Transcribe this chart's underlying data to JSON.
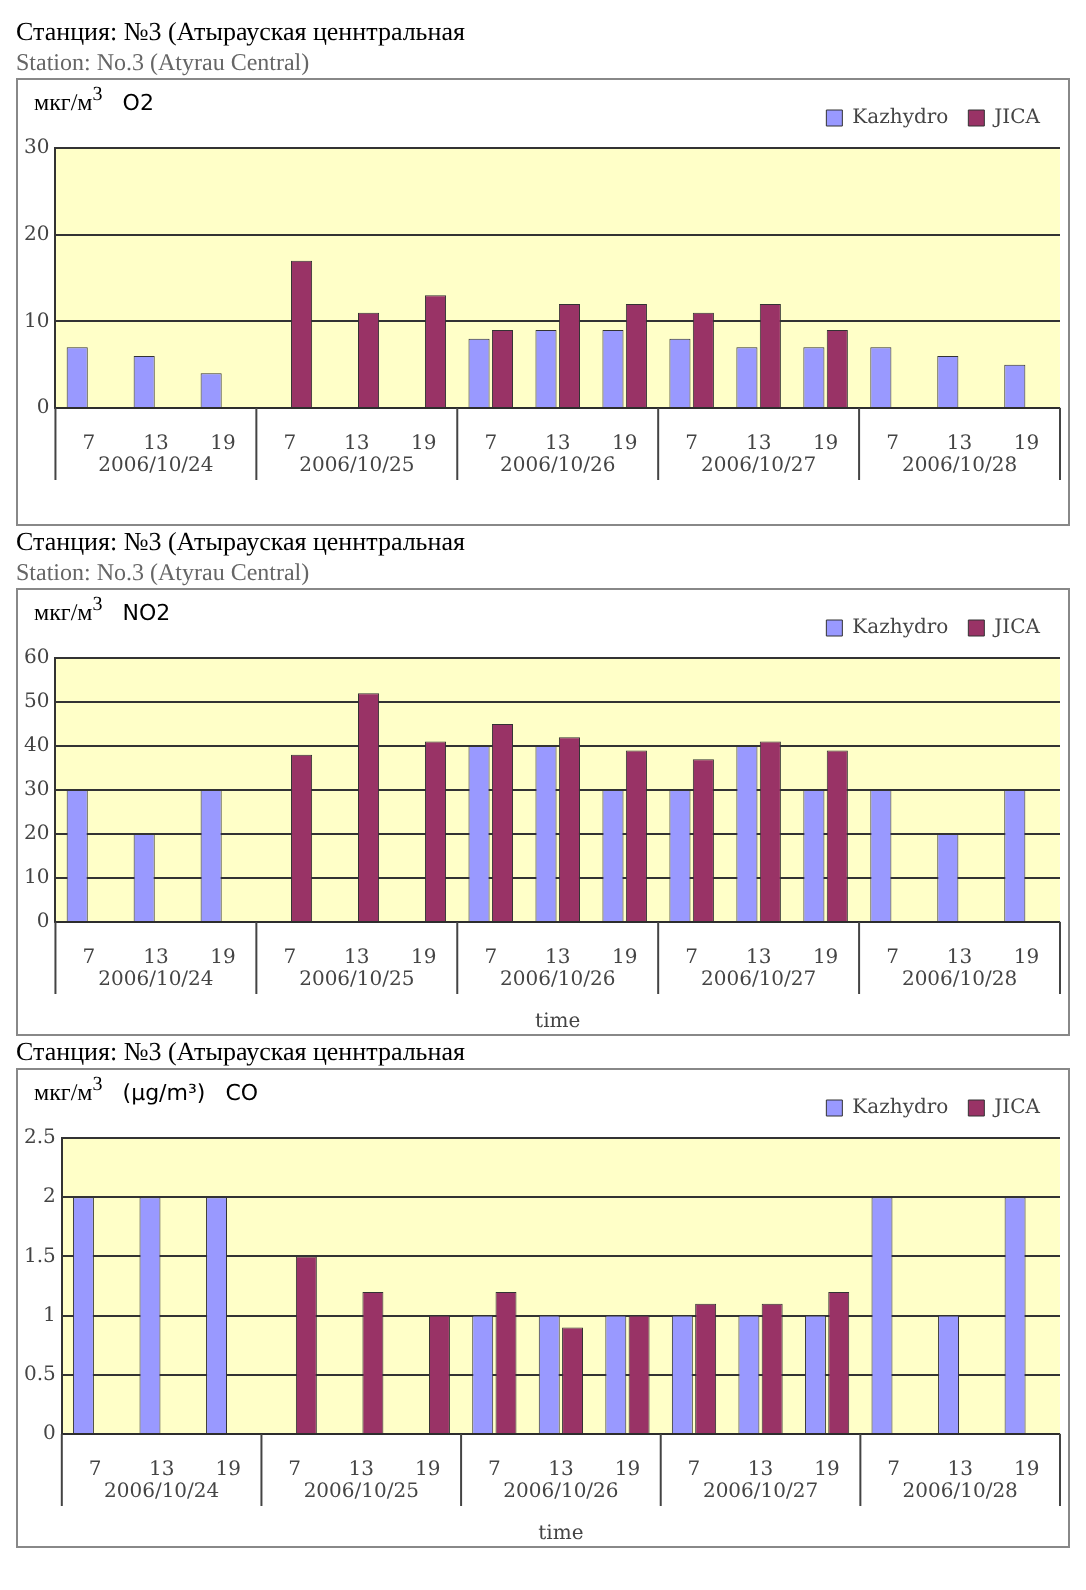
{
  "chart_data": [
    {
      "type": "bar",
      "title": "Станция: №3 (Атырауская ценнтральная",
      "subtitle": "Station: No.3  (Atyrau Central)",
      "ylabel": "мкг/м$^{3}$",
      "categories": [
        "7",
        "13",
        "19",
        "7",
        "13",
        "19",
        "7",
        "13",
        "19",
        "7",
        "13",
        "19",
        "7",
        "13",
        "19"
      ],
      "series": [
        {
          "name": "Kazhydro",
          "color": "#9999ff",
          "values": [
            7,
            6,
            4,
            null,
            null,
            null,
            8,
            9,
            9,
            8,
            7,
            7,
            7,
            6,
            5
          ]
        },
        {
          "name": "JICA",
          "color": "#993366",
          "values": [
            null,
            null,
            null,
            17,
            11,
            13,
            9,
            12,
            12,
            11,
            12,
            9,
            null,
            null,
            null
          ]
        }
      ],
      "ylim": [
        0,
        30
      ],
      "yticks": [
        0,
        10,
        20,
        30
      ],
      "grid": "y",
      "legend": "top right",
      "annotations": [
        "2006/10/24",
        "2006/10/25",
        "2006/10/26",
        "2006/10/27",
        "2006/10/28",
        "O2"
      ]
    },
    {
      "type": "bar",
      "title": "Станция: №3 (Атырауская ценнтральная",
      "subtitle": "Station: No.3  (Atyrau Central)",
      "ylabel": "мкг/м$^{3}$",
      "xlabel": "time",
      "categories": [
        "7",
        "13",
        "19",
        "7",
        "13",
        "19",
        "7",
        "13",
        "19",
        "7",
        "13",
        "19",
        "7",
        "13",
        "19"
      ],
      "series": [
        {
          "name": "Kazhydro",
          "color": "#9999ff",
          "values": [
            30,
            20,
            30,
            null,
            null,
            null,
            40,
            40,
            30,
            30,
            40,
            30,
            30,
            20,
            30
          ]
        },
        {
          "name": "JICA",
          "color": "#993366",
          "values": [
            null,
            null,
            null,
            38,
            52,
            41,
            45,
            42,
            39,
            37,
            41,
            39,
            null,
            null,
            null
          ]
        }
      ],
      "ylim": [
        0,
        60
      ],
      "yticks": [
        0,
        10,
        20,
        30,
        40,
        50,
        60
      ],
      "grid": "y",
      "legend": "top right",
      "annotations": [
        "2006/10/24",
        "2006/10/25",
        "2006/10/26",
        "2006/10/27",
        "2006/10/28",
        "NO2"
      ]
    },
    {
      "type": "bar",
      "title": "Станция: №3 (Атырауская ценнтральная",
      "ylabel": "мкг/м$^{3}$",
      "xlabel": "time",
      "categories": [
        "7",
        "13",
        "19",
        "7",
        "13",
        "19",
        "7",
        "13",
        "19",
        "7",
        "13",
        "19",
        "7",
        "13",
        "19"
      ],
      "series": [
        {
          "name": "Kazhydro",
          "color": "#9999ff",
          "values": [
            2,
            2,
            2,
            null,
            null,
            null,
            1,
            1,
            1,
            1,
            1,
            1,
            2,
            1,
            2
          ]
        },
        {
          "name": "JICA",
          "color": "#993366",
          "values": [
            null,
            null,
            null,
            1.5,
            1.2,
            1.0,
            1.2,
            0.9,
            1.0,
            1.1,
            1.1,
            1.2,
            null,
            null,
            null
          ]
        }
      ],
      "ylim": [
        0,
        2.5
      ],
      "yticks": [
        0,
        0.5,
        1,
        1.5,
        2,
        2.5
      ],
      "grid": "y",
      "legend": "top right",
      "annotations": [
        "2006/10/24",
        "2006/10/25",
        "2006/10/26",
        "2006/10/27",
        "2006/10/28",
        "(μg/m³)",
        "CO"
      ]
    }
  ]
}
